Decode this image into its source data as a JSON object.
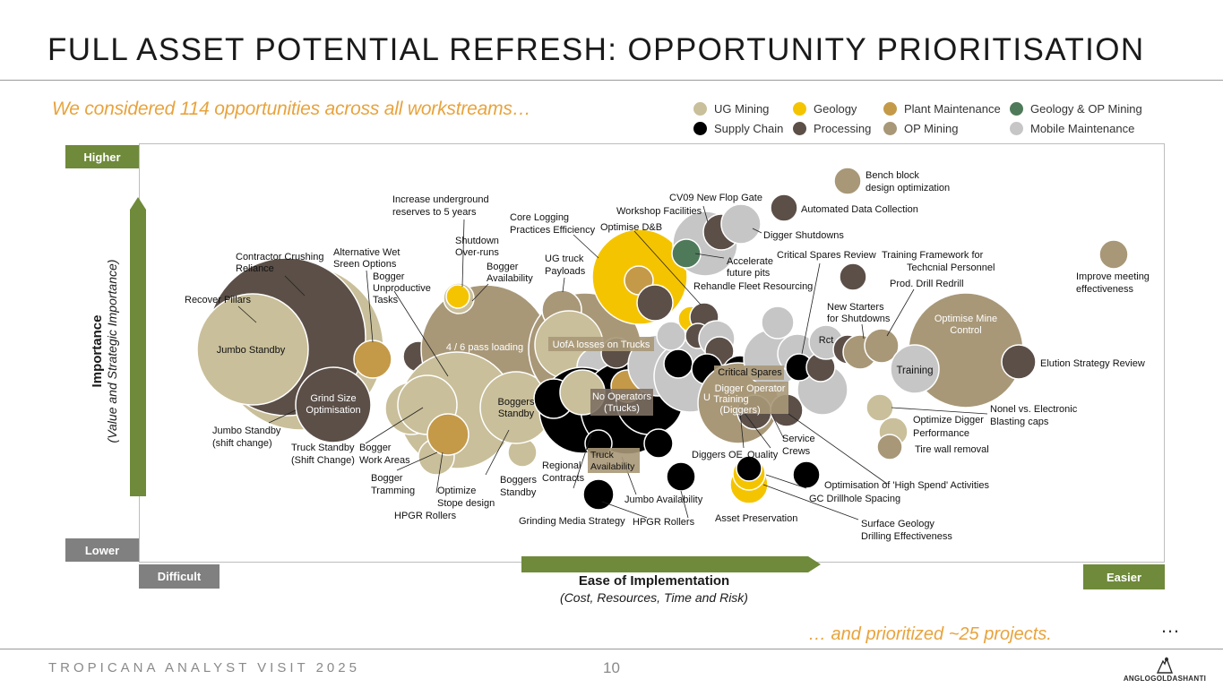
{
  "title": "FULL ASSET POTENTIAL REFRESH: OPPORTUNITY PRIORITISATION",
  "subtitle": "We considered 114 opportunities across all workstreams…",
  "legend": [
    {
      "label": "UG Mining",
      "color": "#c9bf9a"
    },
    {
      "label": "Geology",
      "color": "#f5c400"
    },
    {
      "label": "Plant Maintenance",
      "color": "#c49a48"
    },
    {
      "label": "Geology & OP Mining",
      "color": "#4f7a5a"
    },
    {
      "label": "Supply Chain",
      "color": "#000000"
    },
    {
      "label": "Processing",
      "color": "#5b4f48"
    },
    {
      "label": "OP Mining",
      "color": "#a89878"
    },
    {
      "label": "Mobile Maintenance",
      "color": "#c6c6c6"
    }
  ],
  "axes": {
    "higher": "Higher",
    "lower": "Lower",
    "difficult": "Difficult",
    "easier": "Easier",
    "y_title": "Importance",
    "y_subtitle": "(Value and Strategic Importance)",
    "x_title": "Ease of Implementation",
    "x_subtitle": "(Cost, Resources, Time and Risk)"
  },
  "chart_data": {
    "type": "scatter",
    "title": "Opportunity Prioritisation",
    "xlabel": "Ease of Implementation (Cost, Resources, Time and Risk)",
    "ylabel": "Importance (Value and Strategic Importance)",
    "x_range_labels": [
      "Difficult",
      "Easier"
    ],
    "y_range_labels": [
      "Lower",
      "Higher"
    ],
    "total_opportunities": 114,
    "prioritized_projects": "~25",
    "series": [
      {
        "name": "Jumbo Standby",
        "group": "UG Mining"
      },
      {
        "name": "Grind Size Optimisation",
        "group": "Processing"
      },
      {
        "name": "4 / 6 pass loading",
        "group": "OP Mining"
      },
      {
        "name": "Boggers Standby",
        "group": "UG Mining"
      },
      {
        "name": "UofA losses on Trucks",
        "group": "Mobile Maintenance"
      },
      {
        "name": "No Operators (Trucks)",
        "group": "OP Mining"
      },
      {
        "name": "Truck Availability",
        "group": "OP Mining"
      },
      {
        "name": "Critical Spares",
        "group": "Supply Chain"
      },
      {
        "name": "Digger Operator Training (Diggers)",
        "group": "OP Mining"
      },
      {
        "name": "Rct",
        "group": "Processing"
      },
      {
        "name": "Training",
        "group": "Mobile Maintenance"
      },
      {
        "name": "Optimise Mine Control",
        "group": "OP Mining"
      },
      {
        "name": "Elution Strategy Review",
        "group": "Processing"
      },
      {
        "name": "Improve meeting effectiveness",
        "group": "OP Mining"
      },
      {
        "name": "Bench block design optimization",
        "group": "OP Mining"
      },
      {
        "name": "Automated Data Collection",
        "group": "Processing"
      },
      {
        "name": "Core Logging Practices Efficiency",
        "group": "Geology"
      },
      {
        "name": "Accelerate future pits",
        "group": "Geology & OP Mining"
      },
      {
        "name": "Shutdown Over-runs",
        "group": "Geology"
      }
    ]
  },
  "bubble_labels": {
    "jumbo": "Jumbo Standby",
    "grind1": "Grind Size",
    "grind2": "Optimisation",
    "pass": "4 / 6 pass loading",
    "boggers1": "Boggers",
    "boggers2": "Standby",
    "uofa": "UofA losses on Trucks",
    "noop1": "No Operators",
    "noop2": "(Trucks)",
    "truck1": "Truck",
    "truck2": "Availability",
    "critical": "Critical Spares",
    "digger1": "Digger Operator",
    "digger2": "Training",
    "digger3": "(Diggers)",
    "rct": "Rct",
    "training": "Training",
    "omc1": "Optimise Mine",
    "omc2": "Control"
  },
  "callouts": {
    "recover_pillars": "Recover Pillars",
    "contractor1": "Contractor Crushing",
    "contractor2": "Reliance",
    "alt_wet1": "Alternative Wet",
    "alt_wet2": "Sreen Options",
    "bogger_unprod1": "Bogger",
    "bogger_unprod2": "Unproductive",
    "bogger_unprod3": "Tasks",
    "increase1": "Increase underground",
    "increase2": "reserves to 5 years",
    "shutdown1": "Shutdown",
    "shutdown2": "Over-runs",
    "bogger_avail1": "Bogger",
    "bogger_avail2": "Availability",
    "core1": "Core Logging",
    "core2": "Practices Efficiency",
    "ug_truck1": "UG truck",
    "ug_truck2": "Payloads",
    "workshop": "Workshop Facilities",
    "optimise_db": "Optimise D&B",
    "cv09": "CV09 New Flop Gate",
    "bench1": "Bench block",
    "bench2": "design optimization",
    "auto_data": "Automated Data Collection",
    "digger_shut": "Digger Shutdowns",
    "accelerate1": "Accelerate",
    "accelerate2": "future pits",
    "rehandle": "Rehandle Fleet Resourcing",
    "crit_review": "Critical Spares Review",
    "training_fw1": "Training Framework for",
    "training_fw2": "Techcnial Personnel",
    "prod_drill": "Prod. Drill Redrill",
    "improve1": "Improve meeting",
    "improve2": "effectiveness",
    "new_starters1": "New Starters",
    "new_starters2": "for Shutdowns",
    "elution": "Elution Strategy Review",
    "nonel1": "Nonel vs. Electronic",
    "nonel2": "Blasting caps",
    "opt_digger1": "Optimize Digger",
    "opt_digger2": "Performance",
    "tire_wall": "Tire wall removal",
    "jumbo_shift1": "Jumbo Standby",
    "jumbo_shift2": "(shift change)",
    "truck_shift1": "Truck Standby",
    "truck_shift2": "(Shift Change)",
    "bogger_work1": "Bogger",
    "bogger_work2": "Work Areas",
    "bogger_tram1": "Bogger",
    "bogger_tram2": "Tramming",
    "opt_stope1": "Optimize",
    "opt_stope2": "Stope design",
    "boggers_standby1": "Boggers",
    "boggers_standby2": "Standby",
    "hpgr_left": "HPGR Rollers",
    "regional1": "Regional",
    "regional2": "Contracts",
    "grinding": "Grinding Media Strategy",
    "hpgr_right": "HPGR Rollers",
    "jumbo_avail": "Jumbo Availability",
    "diggers_oe": "Diggers OE",
    "quality": "Quality",
    "service1": "Service",
    "service2": "Crews",
    "asset": "Asset Preservation",
    "high_spend": "Optimisation of 'High Spend' Activities",
    "gc_drill": "GC Drillhole Spacing",
    "surface1": "Surface Geology",
    "surface2": "Drilling Effectiveness",
    "u_fragment": "U"
  },
  "footer": {
    "event": "TROPICANA ANALYST VISIT 2025",
    "page": "10",
    "closing": "… and prioritized ~25 projects.",
    "ellipsis": "…",
    "logo": "ANGLOGOLDASHANTI"
  },
  "colors": {
    "accent_green": "#6f8a3a",
    "grey_tag": "#808080",
    "orange_text": "#e8a33d"
  }
}
